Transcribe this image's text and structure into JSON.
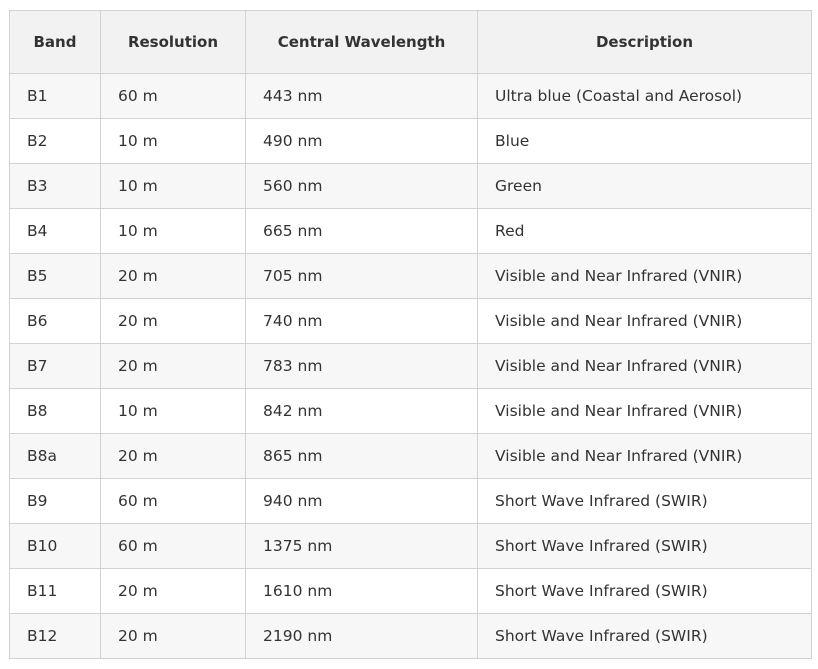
{
  "table": {
    "headers": {
      "band": "Band",
      "resolution": "Resolution",
      "wavelength": "Central Wavelength",
      "description": "Description"
    },
    "rows": [
      {
        "band": "B1",
        "resolution": "60 m",
        "wavelength": "443 nm",
        "description": "Ultra blue (Coastal and Aerosol)"
      },
      {
        "band": "B2",
        "resolution": "10 m",
        "wavelength": "490 nm",
        "description": "Blue"
      },
      {
        "band": "B3",
        "resolution": "10 m",
        "wavelength": "560 nm",
        "description": "Green"
      },
      {
        "band": "B4",
        "resolution": "10 m",
        "wavelength": "665 nm",
        "description": "Red"
      },
      {
        "band": "B5",
        "resolution": "20 m",
        "wavelength": "705 nm",
        "description": "Visible and Near Infrared (VNIR)"
      },
      {
        "band": "B6",
        "resolution": "20 m",
        "wavelength": "740 nm",
        "description": "Visible and Near Infrared (VNIR)"
      },
      {
        "band": "B7",
        "resolution": "20 m",
        "wavelength": "783 nm",
        "description": "Visible and Near Infrared (VNIR)"
      },
      {
        "band": "B8",
        "resolution": "10 m",
        "wavelength": "842 nm",
        "description": "Visible and Near Infrared (VNIR)"
      },
      {
        "band": "B8a",
        "resolution": "20 m",
        "wavelength": "865 nm",
        "description": "Visible and Near Infrared (VNIR)"
      },
      {
        "band": "B9",
        "resolution": "60 m",
        "wavelength": "940 nm",
        "description": "Short Wave Infrared (SWIR)"
      },
      {
        "band": "B10",
        "resolution": "60 m",
        "wavelength": "1375 nm",
        "description": "Short Wave Infrared (SWIR)"
      },
      {
        "band": "B11",
        "resolution": "20 m",
        "wavelength": "1610 nm",
        "description": "Short Wave Infrared (SWIR)"
      },
      {
        "band": "B12",
        "resolution": "20 m",
        "wavelength": "2190 nm",
        "description": "Short Wave Infrared (SWIR)"
      }
    ]
  }
}
